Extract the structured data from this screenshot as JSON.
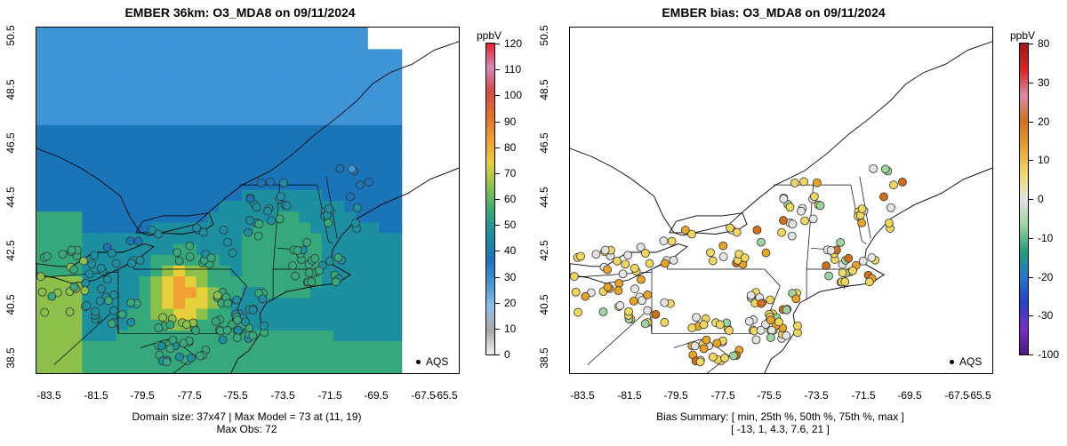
{
  "left": {
    "title": "EMBER 36km: O3_MDA8 on 09/11/2024",
    "unit": "ppbV",
    "legend_label": "AQS",
    "footer_line1": "Domain size: 37x47 | Max Model = 73 at (11, 19)",
    "footer_line2": "Max Obs: 72",
    "colorbar_ticks": [
      "0",
      "10",
      "20",
      "30",
      "40",
      "50",
      "60",
      "70",
      "80",
      "90",
      "100",
      "110",
      "120"
    ]
  },
  "right": {
    "title": "EMBER bias: O3_MDA8 on 09/11/2024",
    "unit": "ppbV",
    "legend_label": "AQS",
    "footer_line1": "Bias Summary: [ min, 25th %, 50th %, 75th %, max ]",
    "footer_line2": "[ -13,   1,   4.3,   7.6,   21 ]",
    "colorbar_ticks": [
      "-100",
      "-30",
      "-20",
      "-10",
      "0",
      "10",
      "20",
      "30",
      "80"
    ]
  },
  "x_ticks": [
    "-83.5",
    "-81.5",
    "-79.5",
    "-77.5",
    "-75.5",
    "-73.5",
    "-71.5",
    "-69.5",
    "-67.5",
    "-65.5"
  ],
  "y_ticks": [
    "38.5",
    "40.5",
    "42.5",
    "44.5",
    "46.5",
    "48.5",
    "50.5"
  ],
  "map_extent": {
    "lon": [
      -84.2,
      -65.1
    ],
    "lat": [
      38.3,
      50.6
    ]
  },
  "colors": {
    "model_scale": [
      "#f2f2f2",
      "#a8a8a8",
      "#8fbfe8",
      "#3f94d6",
      "#1a74b8",
      "#1c8fa0",
      "#35a97c",
      "#8cc04a",
      "#e5cf3a",
      "#f0a030",
      "#e07028",
      "#d44848",
      "#d888b8",
      "#e8202c"
    ],
    "bias_scale": [
      "#4a1a7a",
      "#7a2ec8",
      "#2a3ecc",
      "#1e7ac8",
      "#22a07a",
      "#9fd3a0",
      "#e4e4e4",
      "#f0d860",
      "#e8a428",
      "#d07018",
      "#d88aa8",
      "#e02020",
      "#a01818"
    ]
  }
}
